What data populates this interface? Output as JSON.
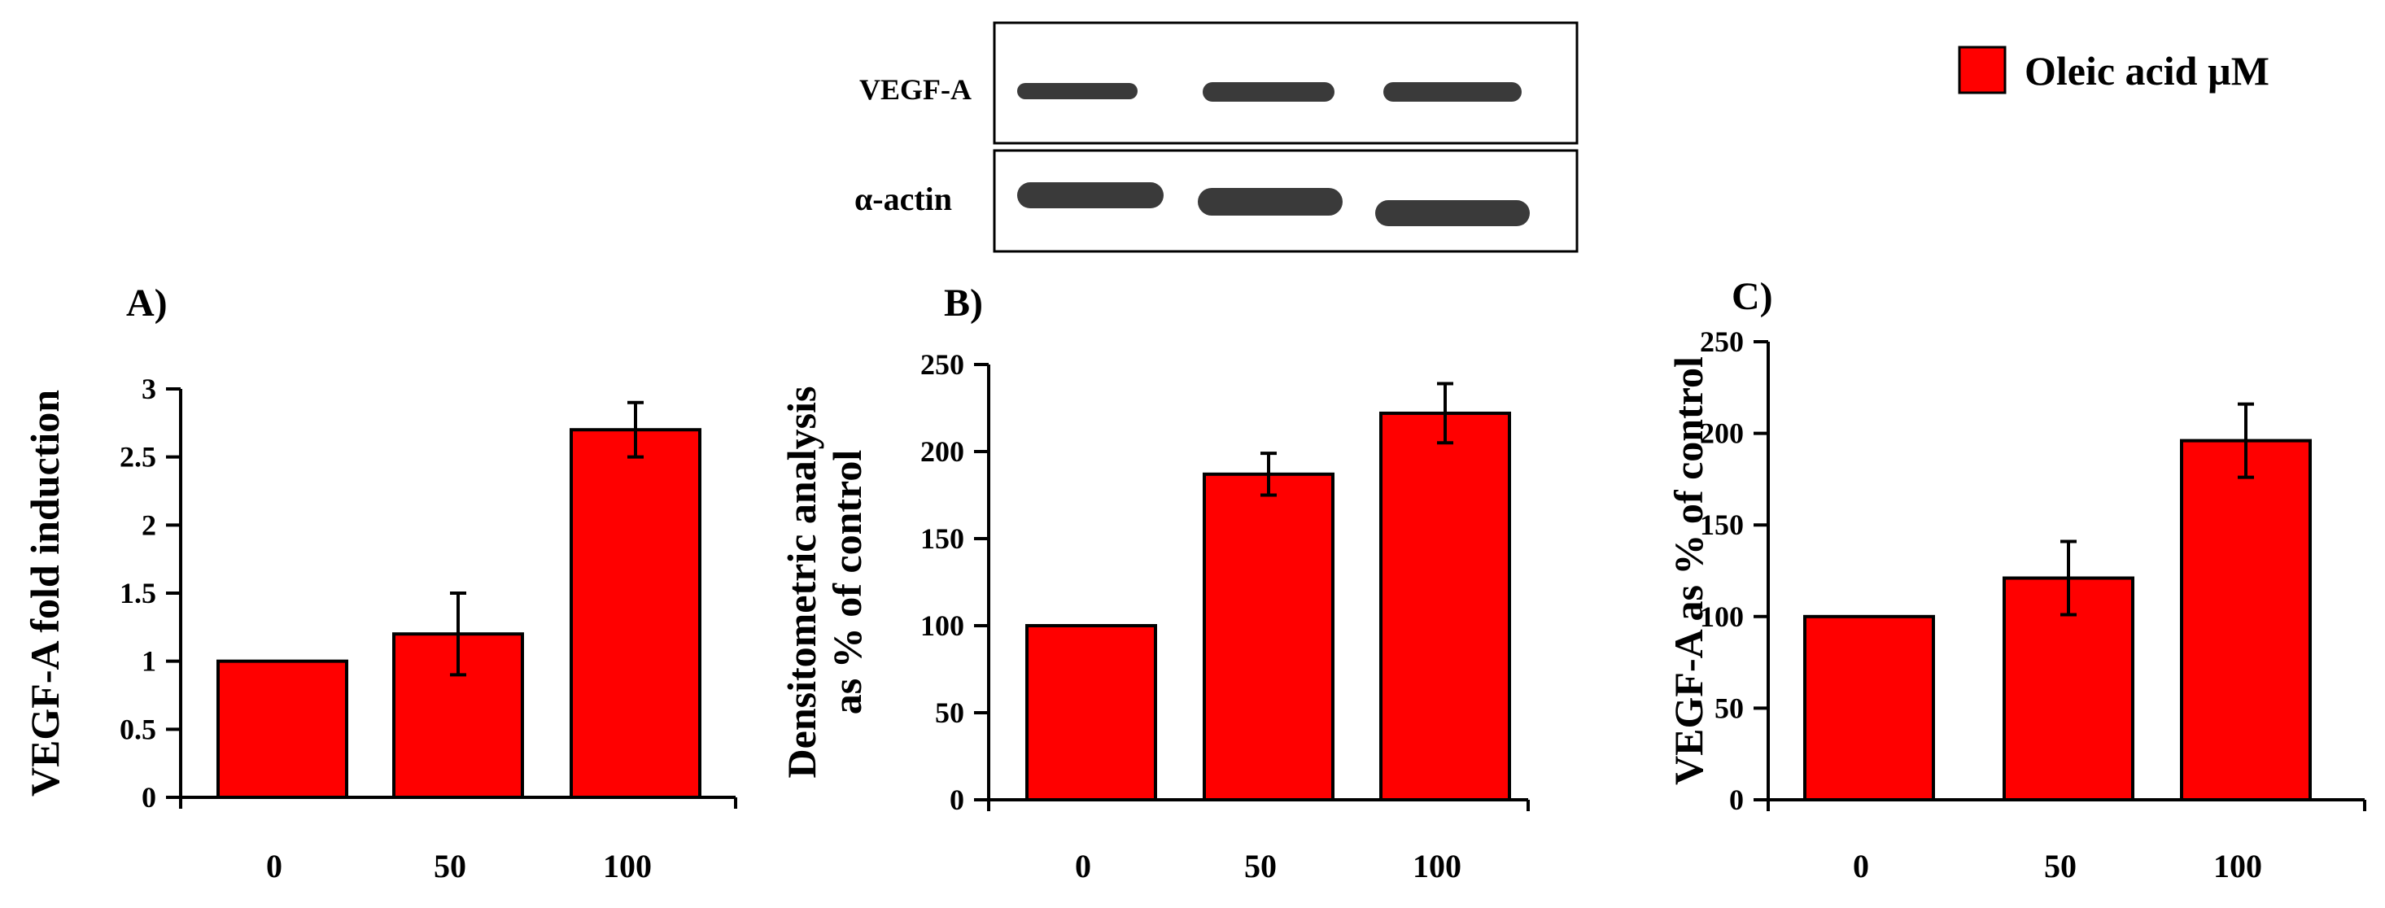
{
  "legend": {
    "label": "Oleic acid µM",
    "color": "#ff0000"
  },
  "blot": {
    "rows": [
      "VEGF-A",
      "α-actin"
    ]
  },
  "colors": {
    "bar_fill": "#ff0000",
    "bar_edge": "#000000",
    "axis": "#000000",
    "band": "#3a3a3a"
  },
  "chart_data": [
    {
      "type": "bar",
      "panel": "A)",
      "ylabel": "VEGF-A fold induction",
      "ylabel_lines": [
        "VEGF-A fold induction"
      ],
      "categories": [
        "0",
        "50",
        "100"
      ],
      "values": [
        1.0,
        1.2,
        2.7
      ],
      "errors": [
        0,
        0.3,
        0.2
      ],
      "ylim": [
        0,
        3
      ],
      "yticks": [
        0,
        0.5,
        1,
        1.5,
        2,
        2.5,
        3
      ],
      "ytick_labels": [
        "0",
        "0.5",
        "1",
        "1.5",
        "2",
        "2.5",
        "3"
      ]
    },
    {
      "type": "bar",
      "panel": "B)",
      "ylabel": "Densitometric analysis as % of control",
      "ylabel_lines": [
        "Densitometric analysis",
        "as % of control"
      ],
      "categories": [
        "0",
        "50",
        "100"
      ],
      "values": [
        100,
        187,
        222
      ],
      "errors": [
        0,
        12,
        17
      ],
      "ylim": [
        0,
        250
      ],
      "yticks": [
        0,
        50,
        100,
        150,
        200,
        250
      ],
      "ytick_labels": [
        "0",
        "50",
        "100",
        "150",
        "200",
        "250"
      ]
    },
    {
      "type": "bar",
      "panel": "C)",
      "ylabel": "VEGF-A as % of control",
      "ylabel_lines": [
        "VEGF-A as % of control"
      ],
      "categories": [
        "0",
        "50",
        "100"
      ],
      "values": [
        100,
        121,
        196
      ],
      "errors": [
        0,
        20,
        20
      ],
      "ylim": [
        0,
        250
      ],
      "yticks": [
        0,
        50,
        100,
        150,
        200,
        250
      ],
      "ytick_labels": [
        "0",
        "50",
        "100",
        "150",
        "200",
        "250"
      ]
    }
  ]
}
